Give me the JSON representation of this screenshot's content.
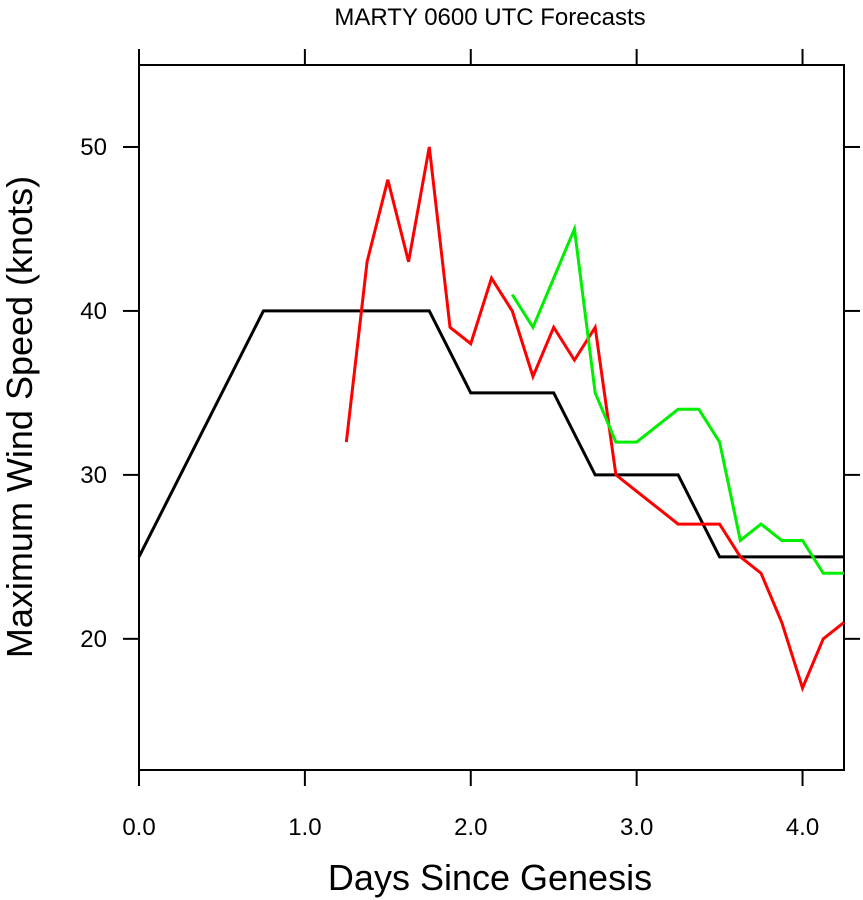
{
  "chart_data": {
    "type": "line",
    "title": "MARTY 0600 UTC Forecasts",
    "xlabel": "Days Since Genesis",
    "ylabel": "Maximum Wind Speed (knots)",
    "xlim": [
      0,
      4.25
    ],
    "ylim": [
      12,
      55
    ],
    "x_ticks": [
      0,
      1,
      2,
      3,
      4
    ],
    "x_tick_labels": [
      "0.0",
      "1.0",
      "2.0",
      "3.0",
      "4.0"
    ],
    "y_ticks": [
      20,
      30,
      40,
      50
    ],
    "y_tick_labels": [
      "20",
      "30",
      "40",
      "50"
    ],
    "grid": false,
    "legend": "none",
    "series": [
      {
        "color": "#000000",
        "x": [
          0,
          0.75,
          1.75,
          2.0,
          2.5,
          2.75,
          3.25,
          3.5,
          4.25
        ],
        "y": [
          25,
          40,
          40,
          35,
          35,
          30,
          30,
          25,
          25
        ]
      },
      {
        "color": "#ff0000",
        "x": [
          1.25,
          1.375,
          1.5,
          1.625,
          1.75,
          1.875,
          2.0,
          2.125,
          2.25,
          2.375,
          2.5,
          2.625,
          2.75,
          2.875,
          3.0,
          3.25,
          3.5,
          3.625,
          3.75,
          3.875,
          4.0,
          4.125,
          4.25
        ],
        "y": [
          32,
          43,
          48,
          43,
          50,
          39,
          38,
          42,
          40,
          36,
          39,
          37,
          39,
          30,
          29,
          27,
          27,
          25,
          24,
          21,
          17,
          20,
          21
        ]
      },
      {
        "color": "#00ee00",
        "x": [
          2.25,
          2.375,
          2.5,
          2.625,
          2.75,
          2.875,
          3.0,
          3.125,
          3.25,
          3.375,
          3.5,
          3.625,
          3.75,
          3.875,
          4.0,
          4.125,
          4.25
        ],
        "y": [
          41,
          39,
          42,
          45,
          35,
          32,
          32,
          33,
          34,
          34,
          32,
          26,
          27,
          26,
          26,
          24,
          24
        ]
      }
    ]
  }
}
